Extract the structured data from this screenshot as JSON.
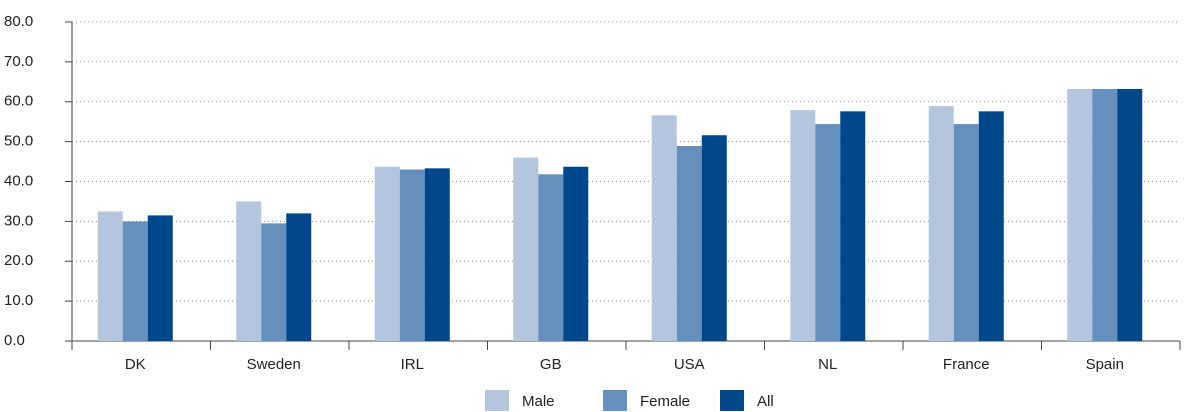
{
  "chart_data": {
    "type": "bar",
    "categories": [
      "DK",
      "Sweden",
      "IRL",
      "GB",
      "USA",
      "NL",
      "France",
      "Spain"
    ],
    "series": [
      {
        "name": "Male",
        "color": "#b3c6de",
        "values": [
          32.5,
          35,
          43.7,
          46,
          56.6,
          57.9,
          58.9,
          63.2
        ]
      },
      {
        "name": "Female",
        "color": "#6590bd",
        "values": [
          30,
          29.5,
          43,
          41.8,
          48.9,
          54.4,
          54.4,
          63.2
        ]
      },
      {
        "name": "All",
        "color": "#00468b",
        "values": [
          31.5,
          32,
          43.3,
          43.7,
          51.6,
          57.6,
          57.6,
          63.2
        ]
      }
    ],
    "ylim": [
      0,
      80
    ],
    "yticks": [
      {
        "value": 0,
        "label": "0.0"
      },
      {
        "value": 10,
        "label": "10.0"
      },
      {
        "value": 20,
        "label": "20.0"
      },
      {
        "value": 30,
        "label": "30.0"
      },
      {
        "value": 40,
        "label": "40.0"
      },
      {
        "value": 50,
        "label": "50.0"
      },
      {
        "value": 60,
        "label": "60.0"
      },
      {
        "value": 70,
        "label": "70.0"
      },
      {
        "value": 80,
        "label": "80.0"
      }
    ],
    "grid": true
  }
}
